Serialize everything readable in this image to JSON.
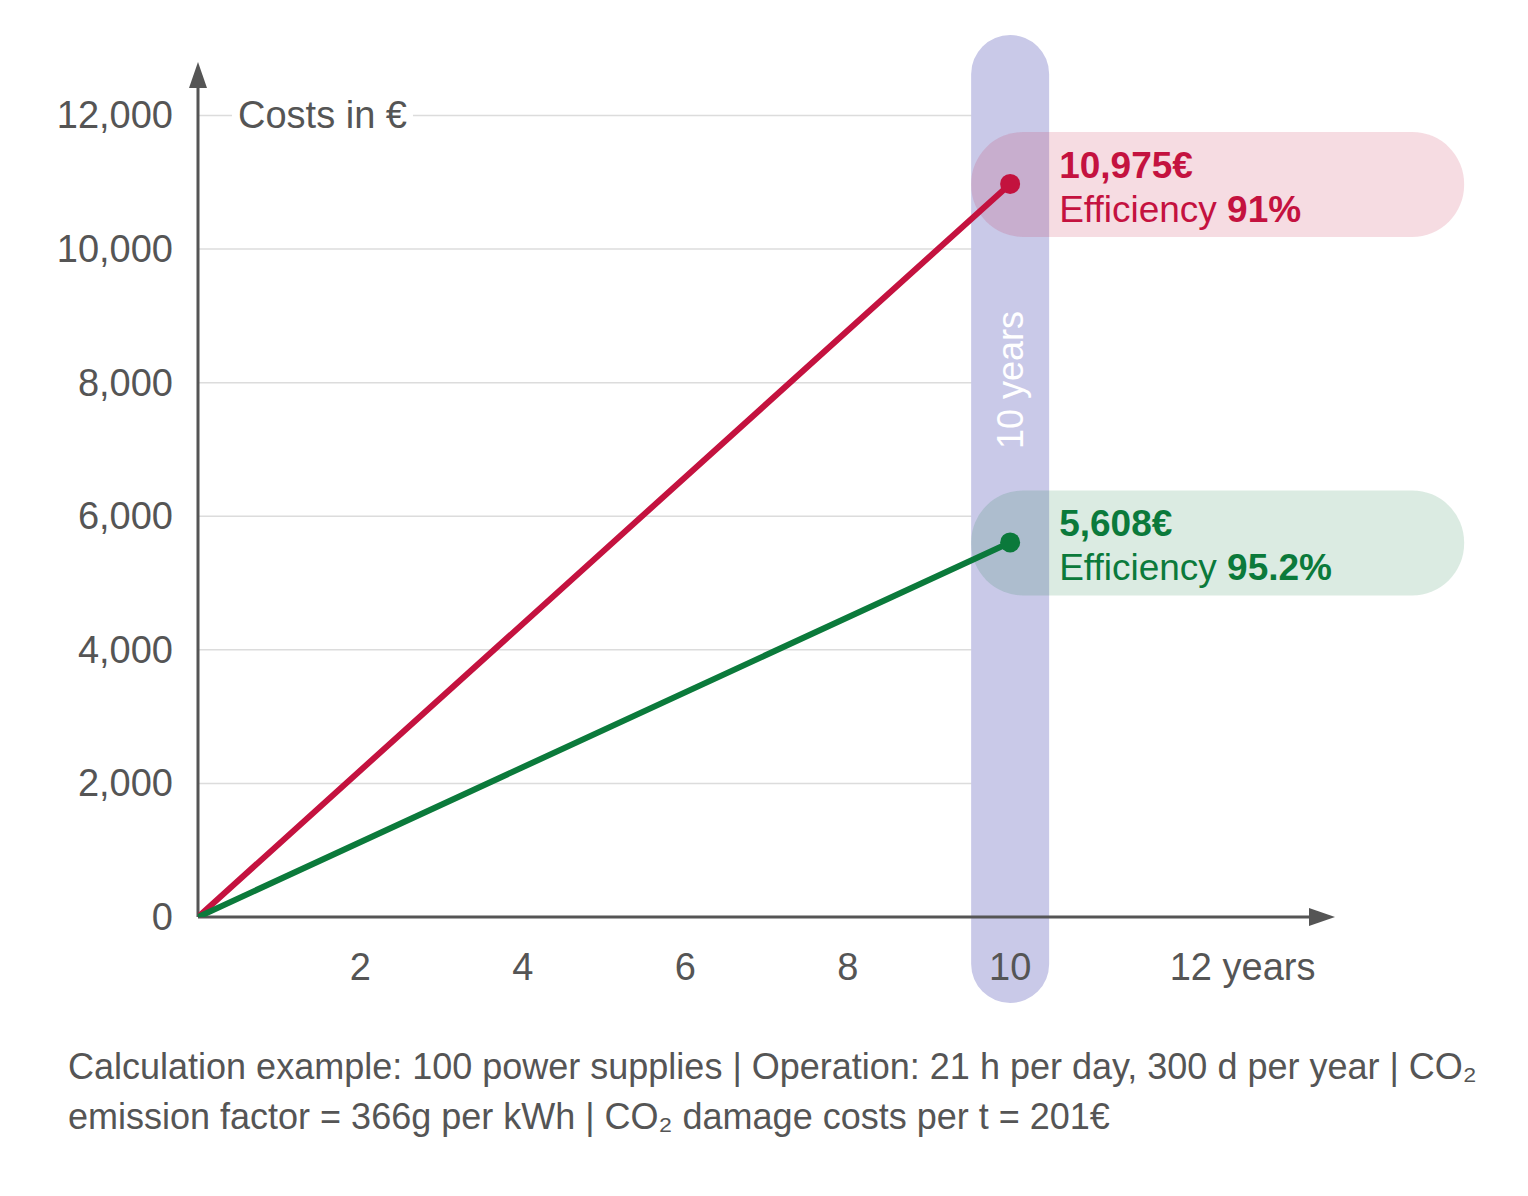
{
  "chart_data": {
    "type": "line",
    "y_label": "Costs in €",
    "x": [
      0,
      10
    ],
    "xlim": [
      0,
      14
    ],
    "xticks": [
      2,
      4,
      6,
      8,
      10,
      {
        "value": 12,
        "label": "12 years"
      }
    ],
    "ylim": [
      0,
      12800
    ],
    "yticks": [
      0,
      {
        "value": 2000,
        "label": "2,000"
      },
      {
        "value": 4000,
        "label": "4,000"
      },
      {
        "value": 6000,
        "label": "6,000"
      },
      {
        "value": 8000,
        "label": "8,000"
      },
      {
        "value": 10000,
        "label": "10,000"
      },
      {
        "value": 12000,
        "label": "12,000"
      }
    ],
    "grid": true,
    "data_labels": true,
    "series": [
      {
        "name": "Efficiency 91%",
        "color": "#c4123f",
        "values": [
          0,
          10975
        ],
        "value_labels": [
          null,
          "10,975€"
        ]
      },
      {
        "name": "Efficiency 95.2%",
        "color": "#0b7a3b",
        "values": [
          0,
          5608
        ],
        "value_labels": [
          null,
          "5,608€"
        ]
      }
    ],
    "annotations": [
      {
        "x": 10,
        "label": "10 years"
      }
    ],
    "caption": "Calculation example: 100 power supplies | Operation: 21 h per day, 300 d per year | CO₂ emission factor = 366g per kWh | CO₂ damage costs per t = 201€"
  }
}
